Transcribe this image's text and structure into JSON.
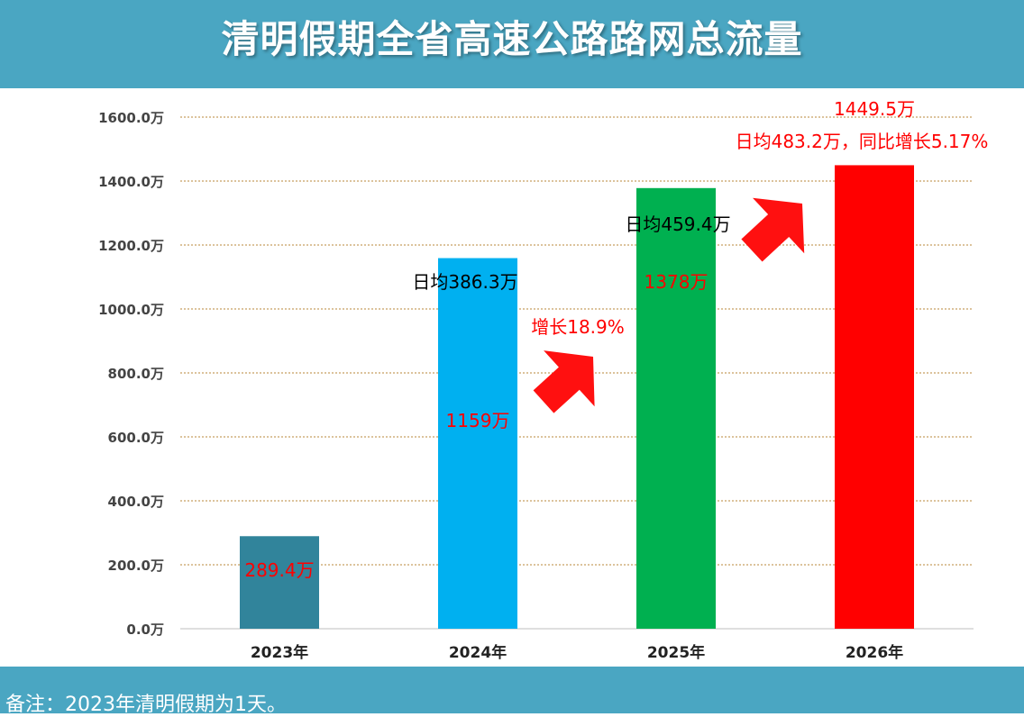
{
  "header": {
    "title": "清明假期全省高速公路路网总流量"
  },
  "footer": {
    "note": "备注：2023年清明假期为1天。"
  },
  "colors": {
    "header_bg": "#4aa6c2",
    "arrow": "#ff1010",
    "label_red": "#ff0000"
  },
  "chart_data": {
    "type": "bar",
    "categories": [
      "2023年",
      "2024年",
      "2025年",
      "2026年"
    ],
    "values": [
      289.4,
      1159,
      1378,
      1449.5
    ],
    "bar_colors": [
      "#31849b",
      "#00b0f0",
      "#00b050",
      "#ff0000"
    ],
    "ylim": [
      0,
      1600
    ],
    "yticks": [
      "0.0万",
      "200.0万",
      "400.0万",
      "600.0万",
      "800.0万",
      "1000.0万",
      "1200.0万",
      "1400.0万",
      "1600.0万"
    ],
    "grid": true,
    "value_labels": [
      "289.4万",
      "1159万",
      "1378万",
      "1449.5万"
    ],
    "daily_labels": [
      "",
      "日均386.3万",
      "日均459.4万",
      "日均483.2万，同比增长5.17%"
    ],
    "growth_annotations": [
      {
        "between": [
          "2024年",
          "2025年"
        ],
        "text": "增长18.9%"
      }
    ],
    "arrows": [
      {
        "from": "2024年",
        "to": "2025年"
      },
      {
        "from": "2025年",
        "to": "2026年"
      }
    ]
  }
}
